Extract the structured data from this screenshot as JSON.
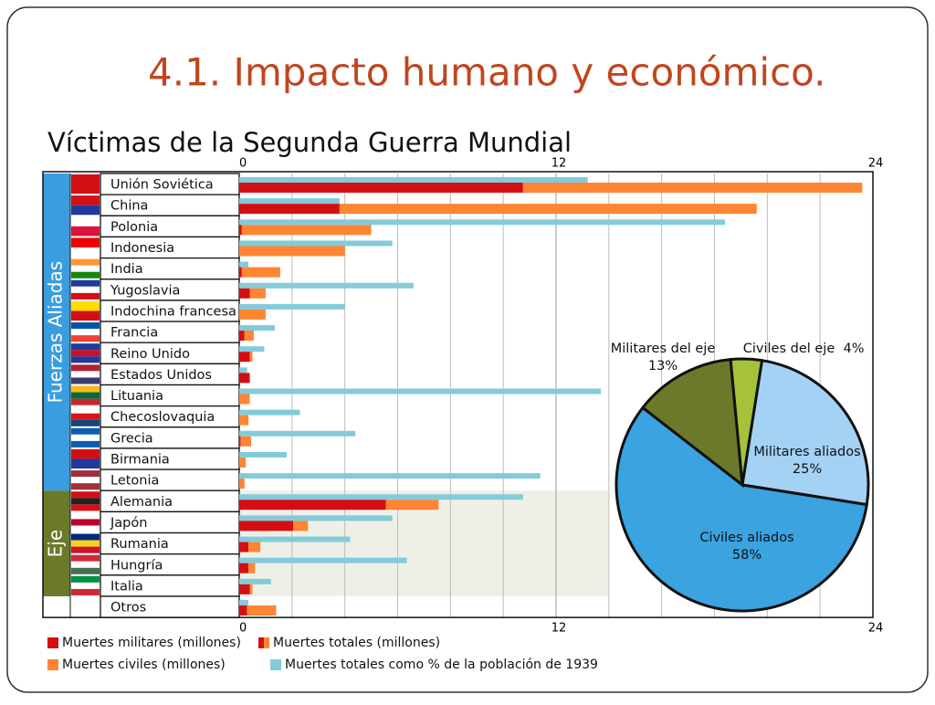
{
  "title": "4.1. Impacto humano y económico.",
  "chart_data": [
    {
      "type": "bar",
      "title": "Víctimas de la Segunda Guerra Mundial",
      "categories": [
        "Unión Soviética",
        "China",
        "Polonia",
        "Indonesia",
        "India",
        "Yugoslavia",
        "Indochina francesa",
        "Francia",
        "Reino Unido",
        "Estados Unidos",
        "Lituania",
        "Checoslovaquia",
        "Grecia",
        "Birmania",
        "Letonia",
        "Alemania",
        "Japón",
        "Rumania",
        "Hungría",
        "Italia",
        "Otros"
      ],
      "groups": [
        {
          "name": "Fuerzas Aliadas",
          "count": 15
        },
        {
          "name": "Eje",
          "count": 5
        }
      ],
      "series": [
        {
          "name": "Muertes militares (millones)",
          "color": "#d40f14",
          "values": [
            10.75,
            3.8,
            0.1,
            0,
            0.1,
            0.4,
            0,
            0.2,
            0.4,
            0.4,
            0,
            0,
            0.05,
            0,
            0,
            5.55,
            2.05,
            0.35,
            0.35,
            0.4,
            0.3
          ]
        },
        {
          "name": "Muertes civiles (millones)",
          "color": "#ff8533",
          "values": [
            12.85,
            15.8,
            4.9,
            4.0,
            1.45,
            0.6,
            1.0,
            0.35,
            0.1,
            0,
            0.4,
            0.35,
            0.4,
            0.25,
            0.2,
            2.0,
            0.55,
            0.45,
            0.25,
            0.1,
            1.1
          ]
        },
        {
          "name": "Muertes totales como % de la población de 1939",
          "color": "#84cbda",
          "values": [
            13.2,
            3.8,
            18.4,
            5.8,
            0.35,
            6.6,
            4.0,
            1.35,
            0.95,
            0.3,
            13.7,
            2.3,
            4.4,
            1.8,
            11.4,
            10.75,
            5.8,
            4.2,
            6.35,
            1.2,
            0.35
          ]
        }
      ],
      "total_label": "Muertes totales (millones)",
      "xlim": [
        0,
        24
      ],
      "xticks": [
        0,
        12,
        24
      ],
      "minor_xticks": [
        2,
        4,
        6,
        8,
        10,
        14,
        16,
        18,
        20,
        22
      ],
      "grid": true
    },
    {
      "type": "pie",
      "categories": [
        "Civiles del eje",
        "Militares aliados",
        "Civiles aliados",
        "Militares del eje"
      ],
      "values": [
        4,
        25,
        58,
        13
      ],
      "value_labels": [
        "4%",
        "25%",
        "58%",
        "13%"
      ],
      "colors": [
        "#a5c23a",
        "#a3d2f5",
        "#3aa3e0",
        "#6b7a2a"
      ]
    }
  ]
}
